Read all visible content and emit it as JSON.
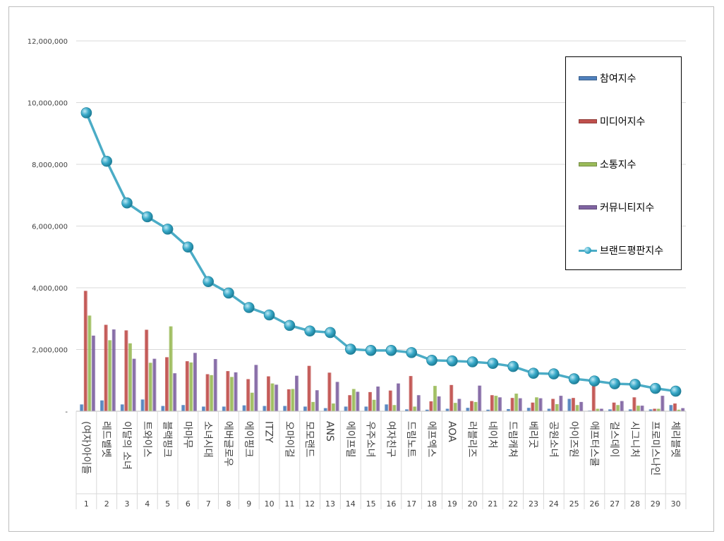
{
  "chart_data": {
    "type": "bar",
    "y_axis": {
      "min": 0,
      "max": 12000000,
      "step": 2000000,
      "tick_labels": [
        "-",
        "2,000,000",
        "4,000,000",
        "6,000,000",
        "8,000,000",
        "10,000,000",
        "12,000,000"
      ]
    },
    "grid": true,
    "legend_position": "top-right",
    "categories": [
      "(여자)아이들",
      "레드벨벳",
      "이달의 소녀",
      "트와이스",
      "블랙핑크",
      "마마무",
      "소녀시대",
      "에버글로우",
      "에이핑크",
      "ITZY",
      "오마이걸",
      "모모랜드",
      "ANS",
      "에이프릴",
      "우주소녀",
      "여자친구",
      "드림노트",
      "에프엑스",
      "AOA",
      "러블리즈",
      "네이처",
      "드림캐쳐",
      "베리굿",
      "공원소녀",
      "아이즈원",
      "애프터스쿨",
      "걸스데이",
      "시그니처",
      "프로미스나인",
      "체리블렛"
    ],
    "ranks": [
      "1",
      "2",
      "3",
      "4",
      "5",
      "6",
      "7",
      "8",
      "9",
      "10",
      "11",
      "12",
      "13",
      "14",
      "15",
      "16",
      "17",
      "18",
      "19",
      "20",
      "21",
      "22",
      "23",
      "24",
      "25",
      "26",
      "27",
      "28",
      "29",
      "30"
    ],
    "series": [
      {
        "name": "참여지수",
        "kind": "bar",
        "color": "#4f81bd",
        "values": [
          220000,
          350000,
          220000,
          380000,
          170000,
          200000,
          150000,
          150000,
          190000,
          170000,
          170000,
          150000,
          100000,
          150000,
          150000,
          220000,
          60000,
          50000,
          80000,
          110000,
          50000,
          70000,
          110000,
          80000,
          400000,
          20000,
          60000,
          60000,
          60000,
          200000
        ]
      },
      {
        "name": "미디어지수",
        "kind": "bar",
        "color": "#c0504d",
        "values": [
          3900000,
          2800000,
          2620000,
          2640000,
          1750000,
          1620000,
          1200000,
          1300000,
          1040000,
          1130000,
          710000,
          1470000,
          1250000,
          520000,
          620000,
          670000,
          1140000,
          320000,
          850000,
          330000,
          520000,
          430000,
          280000,
          400000,
          430000,
          820000,
          280000,
          450000,
          80000,
          250000
        ]
      },
      {
        "name": "소통지수",
        "kind": "bar",
        "color": "#9bbb59",
        "values": [
          3100000,
          2300000,
          2200000,
          1570000,
          2750000,
          1580000,
          1170000,
          1110000,
          600000,
          900000,
          720000,
          300000,
          250000,
          720000,
          370000,
          200000,
          150000,
          820000,
          270000,
          300000,
          500000,
          570000,
          450000,
          230000,
          200000,
          80000,
          200000,
          180000,
          80000,
          50000
        ]
      },
      {
        "name": "커뮤니티지수",
        "kind": "bar",
        "color": "#8064a2",
        "values": [
          2450000,
          2650000,
          1700000,
          1700000,
          1230000,
          1890000,
          1690000,
          1260000,
          1500000,
          860000,
          1150000,
          680000,
          950000,
          630000,
          800000,
          900000,
          520000,
          480000,
          400000,
          830000,
          450000,
          420000,
          420000,
          500000,
          300000,
          80000,
          330000,
          180000,
          500000,
          100000
        ]
      },
      {
        "name": "브랜드평판지수",
        "kind": "line",
        "color": "#4bacc6",
        "values": [
          9670000,
          8100000,
          6750000,
          6300000,
          5900000,
          5320000,
          4200000,
          3830000,
          3360000,
          3120000,
          2780000,
          2600000,
          2550000,
          2010000,
          1970000,
          1970000,
          1900000,
          1650000,
          1630000,
          1600000,
          1550000,
          1450000,
          1230000,
          1210000,
          1050000,
          980000,
          890000,
          870000,
          740000,
          650000
        ]
      }
    ]
  }
}
